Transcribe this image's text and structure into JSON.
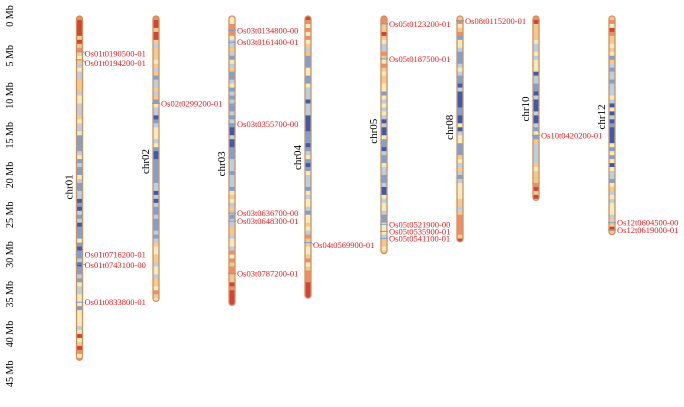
{
  "diagram": {
    "type": "chromosome-map",
    "colors": {
      "gene_label": "#e41a1c",
      "chromosome_outline": "#d2915a",
      "marker_line": "#7a9fd0"
    },
    "density_palette": [
      "#3b5bb0",
      "#7fa0d3",
      "#b9cfe3",
      "#f0ebc0",
      "#f2c98e",
      "#ea8f6a",
      "#d0453a"
    ],
    "axis": {
      "unit": "Mb",
      "max": 45,
      "ticks": [
        {
          "value": 0,
          "label": "0 Mb"
        },
        {
          "value": 5,
          "label": "5 Mb"
        },
        {
          "value": 10,
          "label": "10 Mb"
        },
        {
          "value": 15,
          "label": "15 Mb"
        },
        {
          "value": 20,
          "label": "20 Mb"
        },
        {
          "value": 25,
          "label": "25 Mb"
        },
        {
          "value": 30,
          "label": "30 Mb"
        },
        {
          "value": 35,
          "label": "35 Mb"
        },
        {
          "value": 40,
          "label": "40 Mb"
        },
        {
          "value": 45,
          "label": "45 Mb"
        }
      ]
    },
    "chromosomes": [
      {
        "name": "chr01",
        "length_mb": 43.3,
        "label_mb": 21.5,
        "genes": [
          {
            "id": "Os01t0190500-01",
            "mb": 4.5,
            "label_mb": 4.7
          },
          {
            "id": "Os01t0194200-01",
            "mb": 5.5,
            "label_mb": 5.9
          },
          {
            "id": "Os01t0716200-01",
            "mb": 30.0,
            "label_mb": 30.0
          },
          {
            "id": "Os01t0743100-00",
            "mb": 31.2,
            "label_mb": 31.3
          },
          {
            "id": "Os01t0833800-01",
            "mb": 36.0,
            "label_mb": 36.0
          }
        ]
      },
      {
        "name": "chr02",
        "length_mb": 35.9,
        "label_mb": 18.3,
        "genes": [
          {
            "id": "Os02t0299200-01",
            "mb": 11.0,
            "label_mb": 11.0
          }
        ]
      },
      {
        "name": "chr03",
        "length_mb": 36.4,
        "label_mb": 18.6,
        "genes": [
          {
            "id": "Os03t0134800-00",
            "mb": 1.8,
            "label_mb": 1.8
          },
          {
            "id": "Os03t0161400-01",
            "mb": 3.3,
            "label_mb": 3.3
          },
          {
            "id": "Os03t0355700-00",
            "mb": 13.6,
            "label_mb": 13.6
          },
          {
            "id": "Os03t0636700-00",
            "mb": 24.8,
            "label_mb": 24.8
          },
          {
            "id": "Os03t0648300-01",
            "mb": 25.8,
            "label_mb": 25.8
          },
          {
            "id": "Os03t0787200-01",
            "mb": 32.4,
            "label_mb": 32.4
          }
        ]
      },
      {
        "name": "chr04",
        "length_mb": 35.5,
        "label_mb": 17.8,
        "genes": [
          {
            "id": "Os04t0569900-01",
            "mb": 28.5,
            "label_mb": 28.8
          }
        ]
      },
      {
        "name": "chr05",
        "length_mb": 29.9,
        "label_mb": 14.5,
        "genes": [
          {
            "id": "Os05t0123200-01",
            "mb": 1.0,
            "label_mb": 1.0
          },
          {
            "id": "Os05t0187500-01",
            "mb": 5.4,
            "label_mb": 5.4
          },
          {
            "id": "Os05t0521900-00",
            "mb": 26.2,
            "label_mb": 26.2
          },
          {
            "id": "Os05t0535900-01",
            "mb": 27.1,
            "label_mb": 27.1
          },
          {
            "id": "Os05t0541100-01",
            "mb": 28.0,
            "label_mb": 28.0
          }
        ]
      },
      {
        "name": "chr08",
        "length_mb": 28.4,
        "label_mb": 14.0,
        "genes": [
          {
            "id": "Os08t0115200-01",
            "mb": 0.6,
            "label_mb": 0.6
          }
        ]
      },
      {
        "name": "chr10",
        "length_mb": 23.2,
        "label_mb": 11.7,
        "genes": [
          {
            "id": "Os10t0420200-01",
            "mb": 15.0,
            "label_mb": 15.0
          }
        ]
      },
      {
        "name": "chr12",
        "length_mb": 27.5,
        "label_mb": 12.7,
        "genes": [
          {
            "id": "Os12t0604500-00",
            "mb": 26.0,
            "label_mb": 26.0
          },
          {
            "id": "Os12t0619000-01",
            "mb": 26.9,
            "label_mb": 26.9
          }
        ]
      }
    ]
  }
}
